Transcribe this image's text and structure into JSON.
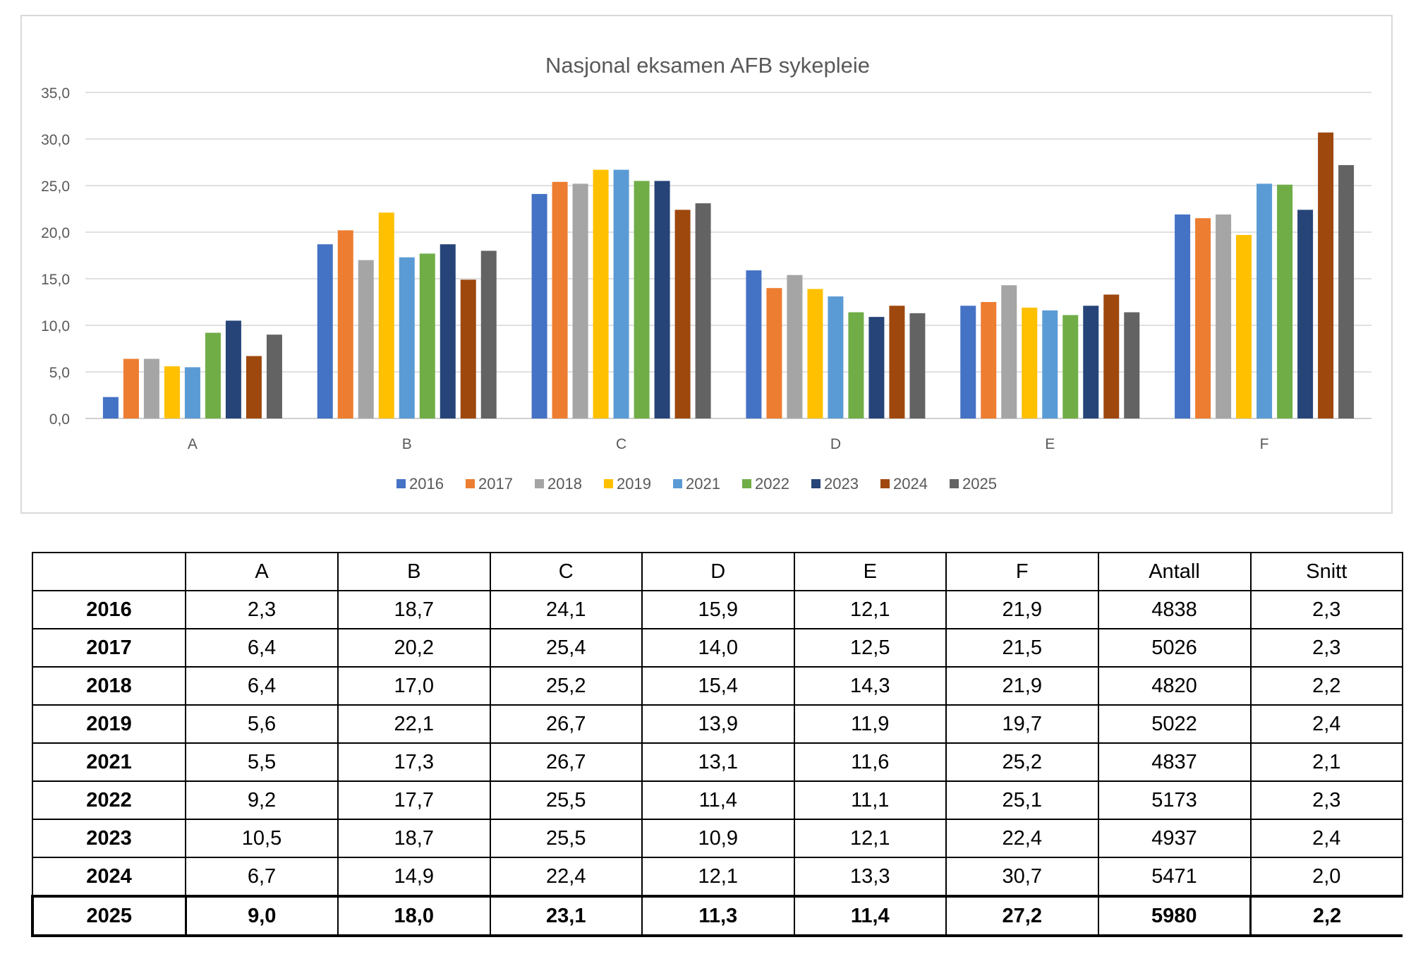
{
  "chart_data": {
    "type": "bar",
    "title": "Nasjonal eksamen AFB sykepleie",
    "xlabel": "",
    "ylabel": "",
    "categories": [
      "A",
      "B",
      "C",
      "D",
      "E",
      "F"
    ],
    "ylim": [
      0,
      35
    ],
    "yticks": [
      "0,0",
      "5,0",
      "10,0",
      "15,0",
      "20,0",
      "25,0",
      "30,0",
      "35,0"
    ],
    "grid": true,
    "legend_position": "bottom",
    "series": [
      {
        "name": "2016",
        "color": "#4472c4",
        "values": [
          2.3,
          18.7,
          24.1,
          15.9,
          12.1,
          21.9
        ]
      },
      {
        "name": "2017",
        "color": "#ed7d31",
        "values": [
          6.4,
          20.2,
          25.4,
          14.0,
          12.5,
          21.5
        ]
      },
      {
        "name": "2018",
        "color": "#a5a5a5",
        "values": [
          6.4,
          17.0,
          25.2,
          15.4,
          14.3,
          21.9
        ]
      },
      {
        "name": "2019",
        "color": "#ffc000",
        "values": [
          5.6,
          22.1,
          26.7,
          13.9,
          11.9,
          19.7
        ]
      },
      {
        "name": "2021",
        "color": "#5b9bd5",
        "values": [
          5.5,
          17.3,
          26.7,
          13.1,
          11.6,
          25.2
        ]
      },
      {
        "name": "2022",
        "color": "#70ad47",
        "values": [
          9.2,
          17.7,
          25.5,
          11.4,
          11.1,
          25.1
        ]
      },
      {
        "name": "2023",
        "color": "#264478",
        "values": [
          10.5,
          18.7,
          25.5,
          10.9,
          12.1,
          22.4
        ]
      },
      {
        "name": "2024",
        "color": "#9e480e",
        "values": [
          6.7,
          14.9,
          22.4,
          12.1,
          13.3,
          30.7
        ]
      },
      {
        "name": "2025",
        "color": "#636363",
        "values": [
          9.0,
          18.0,
          23.1,
          11.3,
          11.4,
          27.2
        ]
      }
    ]
  },
  "table": {
    "headers": [
      "",
      "A",
      "B",
      "C",
      "D",
      "E",
      "F",
      "Antall",
      "Snitt"
    ],
    "rows": [
      [
        "2016",
        "2,3",
        "18,7",
        "24,1",
        "15,9",
        "12,1",
        "21,9",
        "4838",
        "2,3"
      ],
      [
        "2017",
        "6,4",
        "20,2",
        "25,4",
        "14,0",
        "12,5",
        "21,5",
        "5026",
        "2,3"
      ],
      [
        "2018",
        "6,4",
        "17,0",
        "25,2",
        "15,4",
        "14,3",
        "21,9",
        "4820",
        "2,2"
      ],
      [
        "2019",
        "5,6",
        "22,1",
        "26,7",
        "13,9",
        "11,9",
        "19,7",
        "5022",
        "2,4"
      ],
      [
        "2021",
        "5,5",
        "17,3",
        "26,7",
        "13,1",
        "11,6",
        "25,2",
        "4837",
        "2,1"
      ],
      [
        "2022",
        "9,2",
        "17,7",
        "25,5",
        "11,4",
        "11,1",
        "25,1",
        "5173",
        "2,3"
      ],
      [
        "2023",
        "10,5",
        "18,7",
        "25,5",
        "10,9",
        "12,1",
        "22,4",
        "4937",
        "2,4"
      ],
      [
        "2024",
        "6,7",
        "14,9",
        "22,4",
        "12,1",
        "13,3",
        "30,7",
        "5471",
        "2,0"
      ],
      [
        "2025",
        "9,0",
        "18,0",
        "23,1",
        "11,3",
        "11,4",
        "27,2",
        "5980",
        "2,2"
      ]
    ]
  }
}
